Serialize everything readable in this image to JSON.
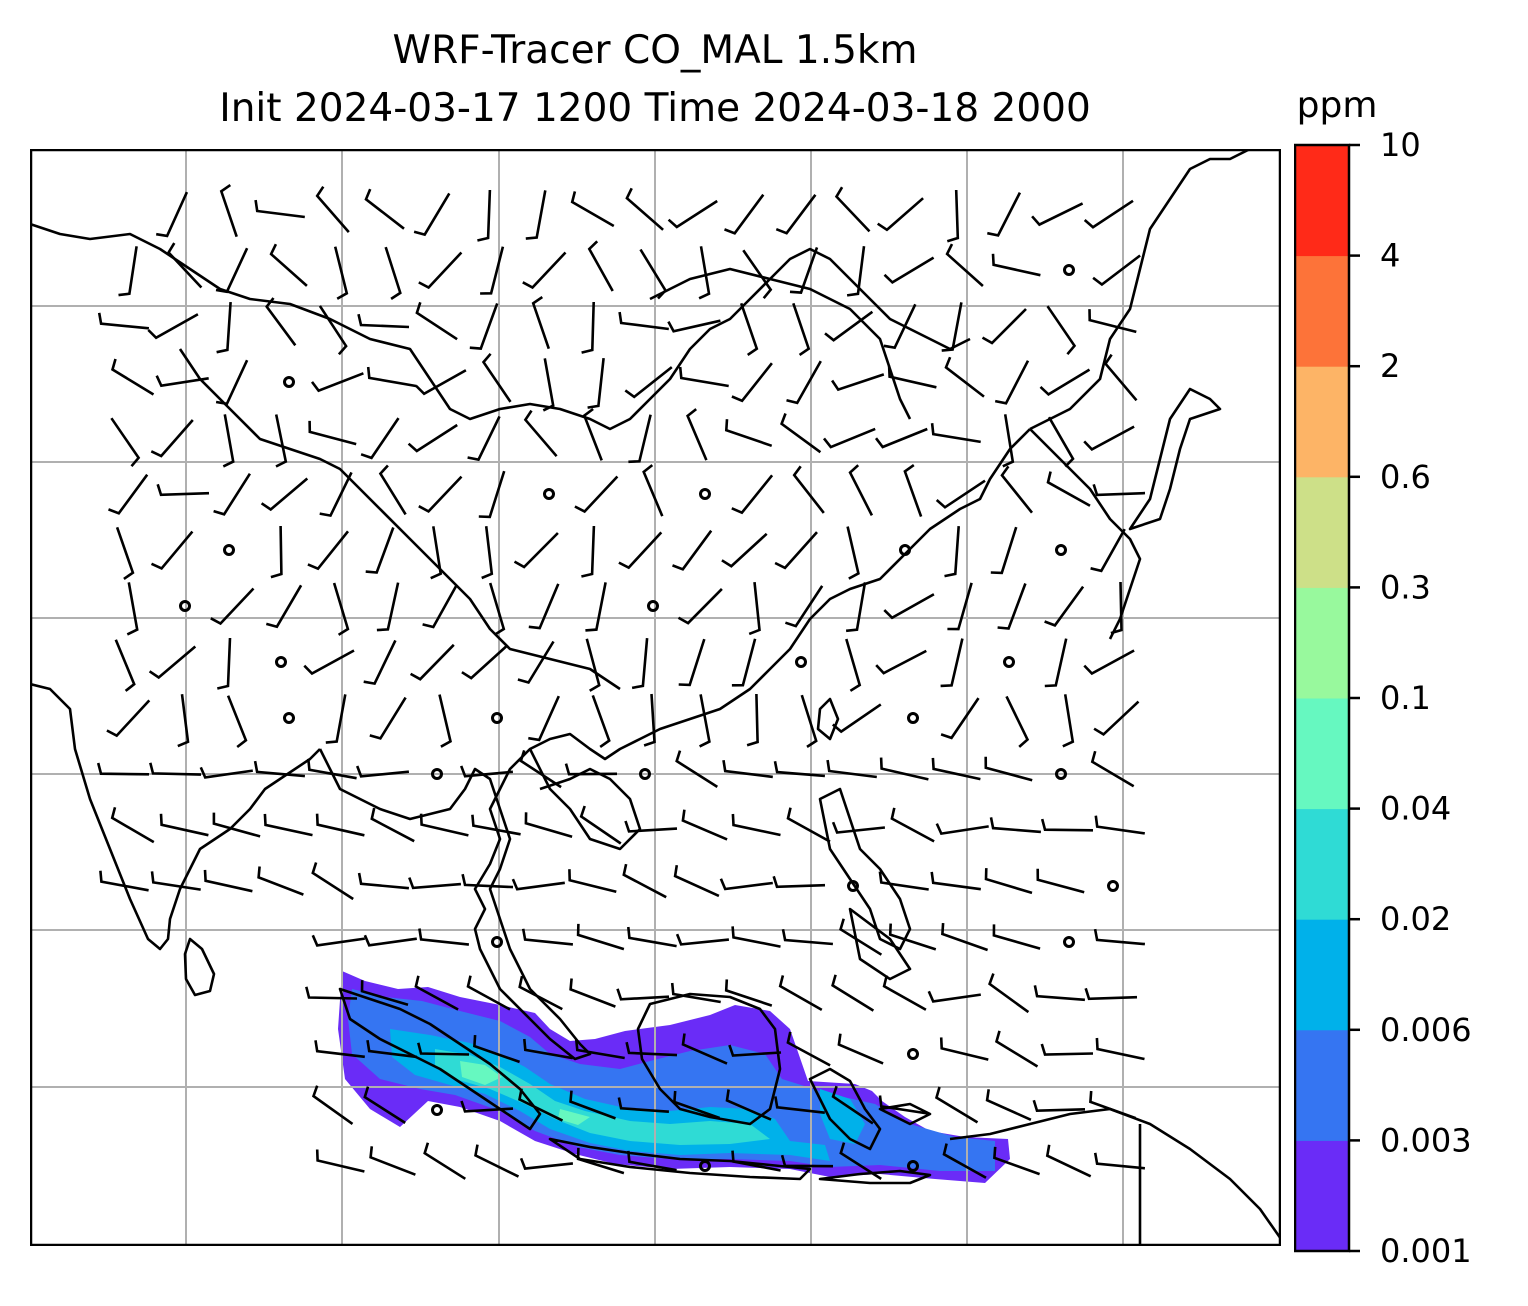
{
  "title": {
    "line1": "WRF-Tracer CO_MAL 1.5km",
    "line2": "Init 2024-03-17 1200 Time 2024-03-18 2000"
  },
  "colorbar": {
    "unit": "ppm",
    "ticks": [
      "0.001",
      "0.003",
      "0.006",
      "0.02",
      "0.04",
      "0.1",
      "0.3",
      "0.6",
      "2",
      "4",
      "10"
    ],
    "colors": [
      "#6a2cf7",
      "#3575f2",
      "#00b1ea",
      "#2fdbd5",
      "#66f8c0",
      "#98f99d",
      "#cde088",
      "#fdb466",
      "#fd7339",
      "#ff2a18"
    ]
  },
  "map": {
    "gridlines": true,
    "features": [
      "coastlines",
      "country-borders",
      "wind-barbs",
      "calm-wind-circles"
    ],
    "plume_color_levels": [
      "0.001",
      "0.003",
      "0.006",
      "0.02",
      "0.04"
    ]
  }
}
